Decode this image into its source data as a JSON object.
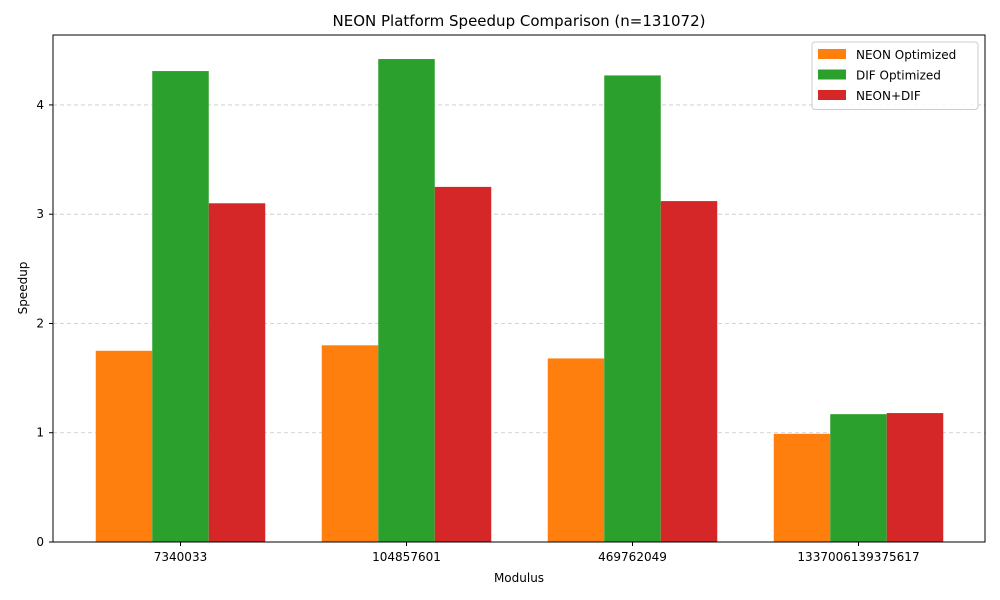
{
  "chart_data": {
    "type": "bar",
    "title": "NEON Platform Speedup Comparison (n=131072)",
    "xlabel": "Modulus",
    "ylabel": "Speedup",
    "categories": [
      "7340033",
      "104857601",
      "469762049",
      "1337006139375617"
    ],
    "series": [
      {
        "name": "NEON Optimized",
        "color": "#ff7f0e",
        "values": [
          1.75,
          1.8,
          1.68,
          0.99
        ]
      },
      {
        "name": "DIF Optimized",
        "color": "#2ca02c",
        "values": [
          4.31,
          4.42,
          4.27,
          1.17
        ]
      },
      {
        "name": "NEON+DIF",
        "color": "#d62728",
        "values": [
          3.1,
          3.25,
          3.12,
          1.18
        ]
      }
    ],
    "ylim": [
      0,
      4.64
    ],
    "yticks": [
      0,
      1,
      2,
      3,
      4
    ],
    "grid": "horizontal-dashed",
    "legend_position": "top-right"
  }
}
